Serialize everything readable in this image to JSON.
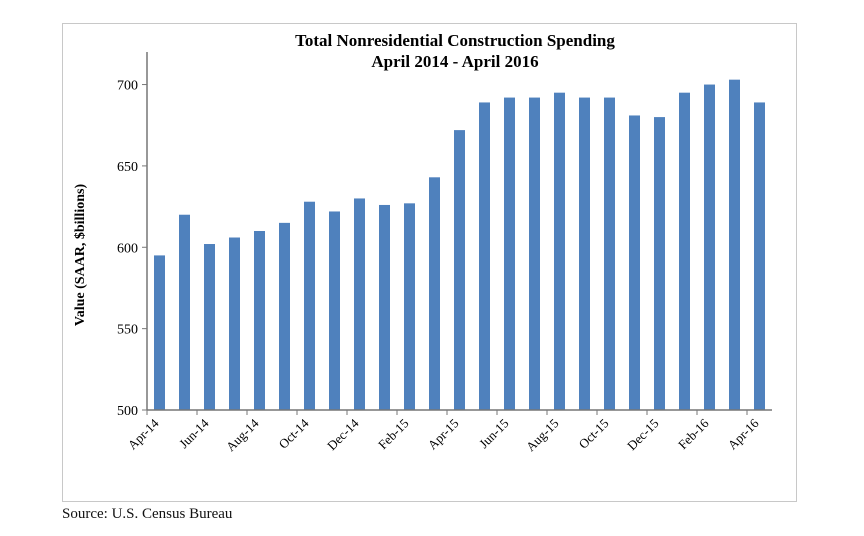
{
  "source": "Source:  U.S. Census Bureau",
  "chart_data": {
    "type": "bar",
    "title": "Total Nonresidential Construction Spending",
    "subtitle": "April 2014 - April 2016",
    "xlabel": "",
    "ylabel": "Value (SAAR, $billions)",
    "ylim": [
      500,
      720
    ],
    "yticks": [
      500,
      550,
      600,
      650,
      700
    ],
    "grid": false,
    "bar_color": "#4f81bd",
    "categories": [
      "Apr-14",
      "May-14",
      "Jun-14",
      "Jul-14",
      "Aug-14",
      "Sep-14",
      "Oct-14",
      "Nov-14",
      "Dec-14",
      "Jan-15",
      "Feb-15",
      "Mar-15",
      "Apr-15",
      "May-15",
      "Jun-15",
      "Jul-15",
      "Aug-15",
      "Sep-15",
      "Oct-15",
      "Nov-15",
      "Dec-15",
      "Jan-16",
      "Feb-16",
      "Mar-16",
      "Apr-16"
    ],
    "tick_labels": [
      "Apr-14",
      "Jun-14",
      "Aug-14",
      "Oct-14",
      "Dec-14",
      "Feb-15",
      "Apr-15",
      "Jun-15",
      "Aug-15",
      "Oct-15",
      "Dec-15",
      "Feb-16",
      "Apr-16"
    ],
    "values": [
      595,
      620,
      602,
      606,
      610,
      615,
      628,
      622,
      630,
      626,
      627,
      643,
      672,
      689,
      692,
      692,
      695,
      692,
      692,
      681,
      680,
      695,
      700,
      703,
      689
    ]
  }
}
